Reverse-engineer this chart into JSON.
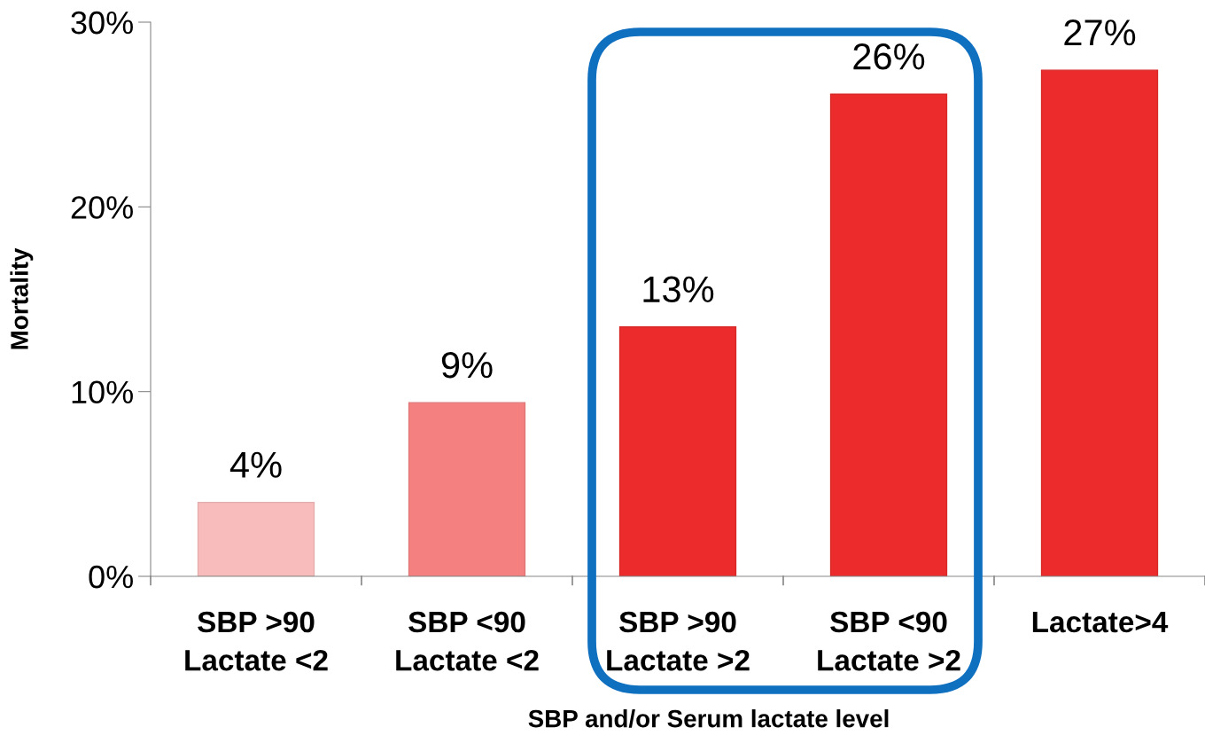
{
  "chart_data": {
    "type": "bar",
    "xlabel": "SBP and/or Serum lactate level",
    "ylabel": "Mortality",
    "categories": [
      "SBP >90\nLactate <2",
      "SBP <90\nLactate <2",
      "SBP >90\nLactate >2",
      "SBP <90\nLactate >2",
      "Lactate>4"
    ],
    "values": [
      4.0,
      9.4,
      13.5,
      26.1,
      27.4
    ],
    "value_labels": [
      "4%",
      "9%",
      "13%",
      "26%",
      "27%"
    ],
    "colors": [
      "#f8bcbc",
      "#f48080",
      "#ec2c2c",
      "#ec2c2c",
      "#ec2c2c"
    ],
    "ylim": [
      0,
      30
    ],
    "yticks": [
      {
        "value": 0,
        "label": "0%"
      },
      {
        "value": 10,
        "label": "10%"
      },
      {
        "value": 20,
        "label": "20%"
      },
      {
        "value": 30,
        "label": "30%"
      }
    ],
    "grid": false,
    "legend": false
  }
}
